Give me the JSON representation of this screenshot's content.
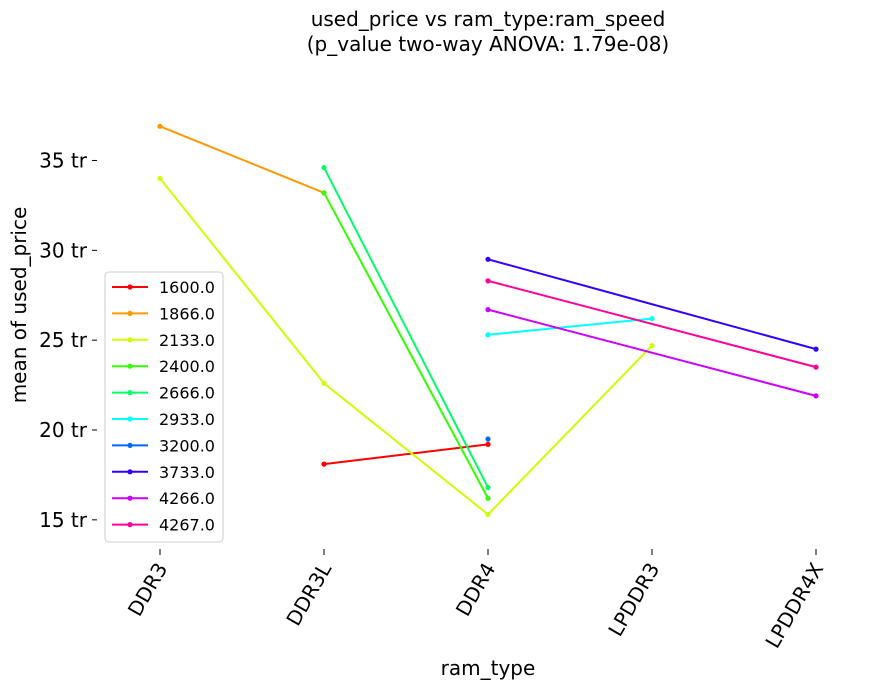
{
  "chart_data": {
    "type": "line",
    "title": "used_price vs ram_type:ram_speed",
    "subtitle": "(p_value two-way ANOVA: 1.79e-08)",
    "xlabel": "ram_type",
    "ylabel": "mean of used_price",
    "categories": [
      "DDR3",
      "DDR3L",
      "DDR4",
      "LPDDR3",
      "LPDDR4X"
    ],
    "yticks": [
      15,
      20,
      25,
      30,
      35
    ],
    "ytick_suffix": " tr",
    "ylim": [
      13.6,
      39.2
    ],
    "grid": false,
    "legend_placement": "center-left",
    "series": [
      {
        "name": "1600.0",
        "color": "#ff0000",
        "values": [
          null,
          18.1,
          19.2,
          null,
          null
        ]
      },
      {
        "name": "1866.0",
        "color": "#ff9900",
        "values": [
          36.9,
          33.2,
          null,
          null,
          null
        ]
      },
      {
        "name": "2133.0",
        "color": "#ccff00",
        "values": [
          34.0,
          22.6,
          15.3,
          24.7,
          null
        ]
      },
      {
        "name": "2400.0",
        "color": "#33ff00",
        "values": [
          null,
          33.2,
          16.2,
          null,
          null
        ]
      },
      {
        "name": "2666.0",
        "color": "#00ff66",
        "values": [
          null,
          34.6,
          16.8,
          null,
          null
        ]
      },
      {
        "name": "2933.0",
        "color": "#00ffff",
        "values": [
          null,
          null,
          25.3,
          26.2,
          null
        ]
      },
      {
        "name": "3200.0",
        "color": "#0066ff",
        "values": [
          null,
          null,
          19.5,
          null,
          null
        ]
      },
      {
        "name": "3733.0",
        "color": "#3300ff",
        "values": [
          null,
          null,
          29.5,
          null,
          24.5
        ]
      },
      {
        "name": "4266.0",
        "color": "#cc00ff",
        "values": [
          null,
          null,
          26.7,
          null,
          21.9
        ]
      },
      {
        "name": "4267.0",
        "color": "#ff0099",
        "values": [
          null,
          null,
          28.3,
          null,
          23.5
        ]
      }
    ]
  }
}
